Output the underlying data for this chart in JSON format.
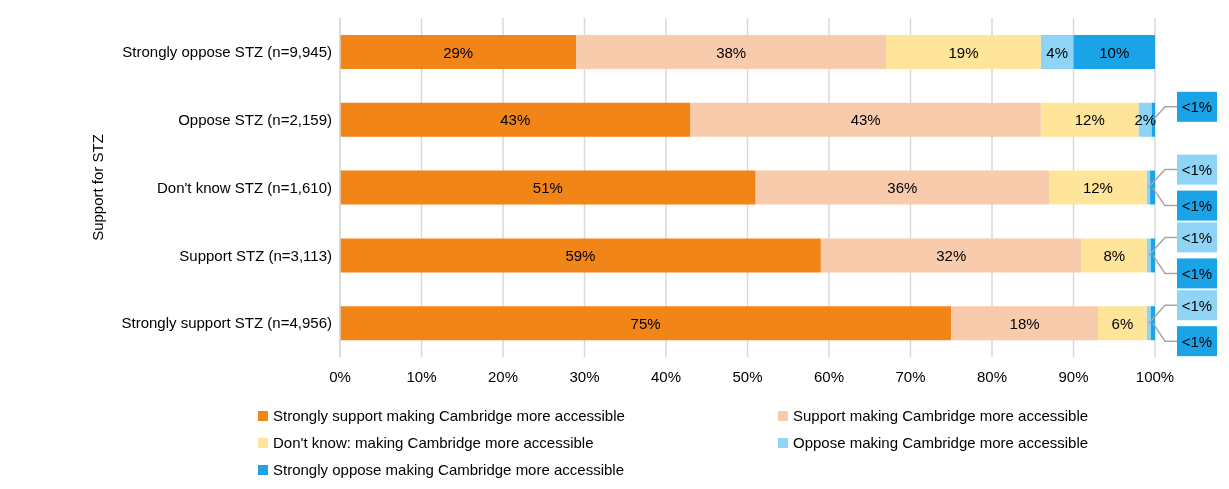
{
  "chart_data": {
    "type": "bar",
    "orientation": "horizontal",
    "stacked": true,
    "ylabel": "Support for STZ",
    "categories": [
      "Strongly oppose STZ (n=9,945)",
      "Oppose STZ (n=2,159)",
      "Don't know STZ (n=1,610)",
      "Support STZ (n=3,113)",
      "Strongly support STZ (n=4,956)"
    ],
    "series": [
      {
        "name": "Strongly support making Cambridge more accessible",
        "color": "#f28518",
        "values": [
          29,
          43,
          51,
          59,
          75
        ],
        "value_labels": [
          "29%",
          "43%",
          "51%",
          "59%",
          "75%"
        ]
      },
      {
        "name": "Support making Cambridge more accessible",
        "color": "#f8cbad",
        "values": [
          38,
          43,
          36,
          32,
          18
        ],
        "value_labels": [
          "38%",
          "43%",
          "36%",
          "32%",
          "18%"
        ]
      },
      {
        "name": "Don't know: making Cambridge more accessible",
        "color": "#ffe599",
        "values": [
          19,
          12,
          12,
          8,
          6
        ],
        "value_labels": [
          "19%",
          "12%",
          "12%",
          "8%",
          "6%"
        ]
      },
      {
        "name": "Oppose making Cambridge more accessible",
        "color": "#8fd4f5",
        "values": [
          4,
          1.6,
          0.4,
          0.5,
          0.5
        ],
        "value_labels": [
          "4%",
          "2%",
          "<1%",
          "<1%",
          "<1%"
        ]
      },
      {
        "name": "Strongly oppose making Cambridge more accessible",
        "color": "#1aa3e6",
        "values": [
          10,
          0.4,
          0.6,
          0.5,
          0.5
        ],
        "value_labels": [
          "10%",
          "<1%",
          "<1%",
          "<1%",
          "<1%"
        ]
      }
    ],
    "xlim": [
      0,
      100
    ],
    "xticks": [
      {
        "value": 0,
        "label": "0%"
      },
      {
        "value": 10,
        "label": "10%"
      },
      {
        "value": 20,
        "label": "20%"
      },
      {
        "value": 30,
        "label": "30%"
      },
      {
        "value": 40,
        "label": "40%"
      },
      {
        "value": 50,
        "label": "50%"
      },
      {
        "value": 60,
        "label": "60%"
      },
      {
        "value": 70,
        "label": "70%"
      },
      {
        "value": 80,
        "label": "80%"
      },
      {
        "value": 90,
        "label": "90%"
      },
      {
        "value": 100,
        "label": "100%"
      }
    ],
    "grid": "x",
    "legend": "bottom"
  }
}
